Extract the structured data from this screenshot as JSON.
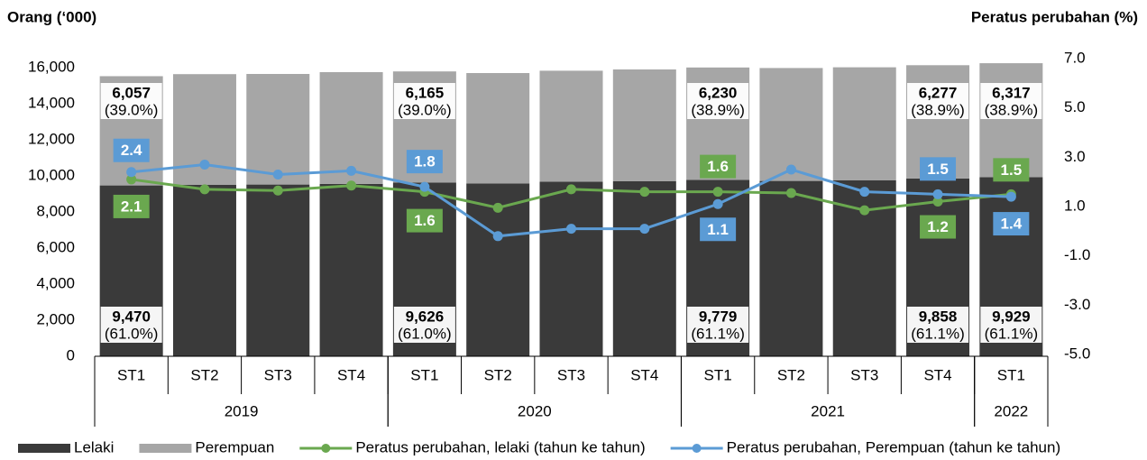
{
  "chart_data": {
    "type": "bar-line",
    "y_label": "Orang (‘000)",
    "y2_label": "Peratus perubahan (%)",
    "categories": [
      "ST1",
      "ST2",
      "ST3",
      "ST4",
      "ST1",
      "ST2",
      "ST3",
      "ST4",
      "ST1",
      "ST2",
      "ST3",
      "ST4",
      "ST1"
    ],
    "groups": [
      {
        "label": "2019",
        "span": 4
      },
      {
        "label": "2020",
        "span": 4
      },
      {
        "label": "2021",
        "span": 4
      },
      {
        "label": "2022",
        "span": 1
      }
    ],
    "ylim": [
      0,
      16000
    ],
    "yticks": [
      0,
      {
        "value": 2000,
        "label": "2,000"
      },
      {
        "value": 4000,
        "label": "4,000"
      },
      {
        "value": 6000,
        "label": "6,000"
      },
      {
        "value": 8000,
        "label": "8,000"
      },
      {
        "value": 10000,
        "label": "10,000"
      },
      {
        "value": 12000,
        "label": "12,000"
      },
      {
        "value": 14000,
        "label": "14,000"
      },
      {
        "value": 16000,
        "label": "16,000"
      }
    ],
    "y2lim": [
      -5,
      7
    ],
    "y2ticks": [
      {
        "value": -5,
        "label": "-5.0"
      },
      {
        "value": -3,
        "label": "-3.0"
      },
      {
        "value": -1,
        "label": "-1.0"
      },
      {
        "value": 1,
        "label": "1.0"
      },
      {
        "value": 3,
        "label": "3.0"
      },
      {
        "value": 5,
        "label": "5.0"
      },
      {
        "value": 7,
        "label": "7.0"
      }
    ],
    "series": [
      {
        "name": "Lelaki",
        "type": "bar",
        "color": "#3a3a3a",
        "values": [
          9470,
          9500,
          9520,
          9560,
          9626,
          9580,
          9680,
          9700,
          9779,
          9720,
          9750,
          9858,
          9929
        ],
        "value_labels": [
          "9,470",
          null,
          null,
          null,
          "9,626",
          null,
          null,
          null,
          "9,779",
          null,
          null,
          "9,858",
          "9,929"
        ],
        "share_labels": [
          "(61.0%)",
          null,
          null,
          null,
          "(61.0%)",
          null,
          null,
          null,
          "(61.1%)",
          null,
          null,
          "(61.1%)",
          "(61.1%)"
        ]
      },
      {
        "name": "Perempuan",
        "type": "bar",
        "color": "#a6a6a6",
        "values": [
          6057,
          6140,
          6130,
          6190,
          6165,
          6120,
          6150,
          6200,
          6230,
          6260,
          6270,
          6277,
          6317
        ],
        "value_labels": [
          "6,057",
          null,
          null,
          null,
          "6,165",
          null,
          null,
          null,
          "6,230",
          null,
          null,
          "6,277",
          "6,317"
        ],
        "share_labels": [
          "(39.0%)",
          null,
          null,
          null,
          "(39.0%)",
          null,
          null,
          null,
          "(38.9%)",
          null,
          null,
          "(38.9%)",
          "(38.9%)"
        ]
      },
      {
        "name": "Peratus perubahan, lelaki (tahun ke tahun)",
        "type": "line",
        "axis": "y2",
        "color": "#6aa84f",
        "values": [
          2.1,
          1.7,
          1.65,
          1.85,
          1.6,
          0.95,
          1.7,
          1.6,
          1.6,
          1.55,
          0.85,
          1.2,
          1.5
        ],
        "value_labels": [
          "2.1",
          null,
          null,
          null,
          "1.6",
          null,
          null,
          null,
          "1.6",
          null,
          null,
          "1.2",
          "1.5"
        ]
      },
      {
        "name": "Peratus perubahan, Perempuan (tahun ke tahun)",
        "type": "line",
        "axis": "y2",
        "color": "#5b9bd5",
        "values": [
          2.4,
          2.7,
          2.3,
          2.45,
          1.8,
          -0.2,
          0.1,
          0.1,
          1.1,
          2.5,
          1.6,
          1.5,
          1.4
        ],
        "value_labels": [
          "2.4",
          null,
          null,
          null,
          "1.8",
          null,
          null,
          null,
          "1.1",
          null,
          null,
          "1.5",
          "1.4"
        ]
      }
    ]
  }
}
